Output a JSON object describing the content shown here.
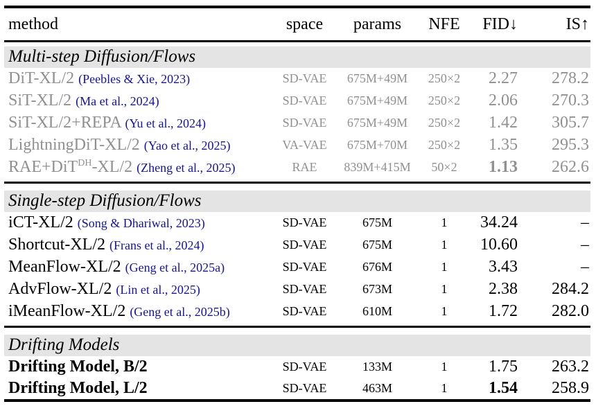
{
  "colors": {
    "muted_text": "#909090",
    "citation_text": "#15158f",
    "section_band_bg": "#e4e4e4",
    "rule": "#000000"
  },
  "table": {
    "columns": [
      {
        "label": "method",
        "align": "left"
      },
      {
        "label": "space",
        "align": "center"
      },
      {
        "label": "params",
        "align": "center"
      },
      {
        "label": "NFE",
        "align": "center"
      },
      {
        "label": "FID↓",
        "align": "right"
      },
      {
        "label": "IS↑",
        "align": "right"
      }
    ],
    "sections": [
      {
        "title": "Multi-step Diffusion/Flows",
        "muted": true,
        "rows": [
          {
            "method": "DiT-XL/2",
            "cite": "(Peebles & Xie, 2023)",
            "space": "SD-VAE",
            "params": "675M+49M",
            "nfe": "250×2",
            "fid": "2.27",
            "is": "278.2"
          },
          {
            "method": "SiT-XL/2",
            "cite": "(Ma et al., 2024)",
            "space": "SD-VAE",
            "params": "675M+49M",
            "nfe": "250×2",
            "fid": "2.06",
            "is": "270.3"
          },
          {
            "method": "SiT-XL/2+REPA",
            "cite": "(Yu et al., 2024)",
            "space": "SD-VAE",
            "params": "675M+49M",
            "nfe": "250×2",
            "fid": "1.42",
            "is": "305.7"
          },
          {
            "method": "LightningDiT-XL/2",
            "cite": "(Yao et al., 2025)",
            "space": "VA-VAE",
            "params": "675M+70M",
            "nfe": "250×2",
            "fid": "1.35",
            "is": "295.3"
          },
          {
            "method": "RAE+DiT",
            "method_sup": "DH",
            "method_tail": "-XL/2",
            "cite": "(Zheng et al., 2025)",
            "space": "RAE",
            "params": "839M+415M",
            "nfe": "50×2",
            "fid": "1.13",
            "fid_bold": true,
            "is": "262.6"
          }
        ]
      },
      {
        "title": "Single-step Diffusion/Flows",
        "muted": false,
        "rows": [
          {
            "method": "iCT-XL/2",
            "cite": "(Song & Dhariwal, 2023)",
            "space": "SD-VAE",
            "params": "675M",
            "nfe": "1",
            "fid": "34.24",
            "is": "–"
          },
          {
            "method": "Shortcut-XL/2",
            "cite": "(Frans et al., 2024)",
            "space": "SD-VAE",
            "params": "675M",
            "nfe": "1",
            "fid": "10.60",
            "is": "–"
          },
          {
            "method": "MeanFlow-XL/2",
            "cite": "(Geng et al., 2025a)",
            "space": "SD-VAE",
            "params": "676M",
            "nfe": "1",
            "fid": "3.43",
            "is": "–"
          },
          {
            "method": "AdvFlow-XL/2",
            "cite": "(Lin et al., 2025)",
            "space": "SD-VAE",
            "params": "673M",
            "nfe": "1",
            "fid": "2.38",
            "is": "284.2"
          },
          {
            "method": "iMeanFlow-XL/2",
            "cite": "(Geng et al., 2025b)",
            "space": "SD-VAE",
            "params": "610M",
            "nfe": "1",
            "fid": "1.72",
            "is": "282.0"
          }
        ]
      },
      {
        "title": "Drifting Models",
        "muted": false,
        "rows": [
          {
            "method": "Drifting Model, B/2",
            "method_bold": true,
            "space": "SD-VAE",
            "params": "133M",
            "nfe": "1",
            "fid": "1.75",
            "is": "263.2"
          },
          {
            "method": "Drifting Model, L/2",
            "method_bold": true,
            "space": "SD-VAE",
            "params": "463M",
            "nfe": "1",
            "fid": "1.54",
            "fid_bold": true,
            "is": "258.9"
          }
        ]
      }
    ]
  }
}
